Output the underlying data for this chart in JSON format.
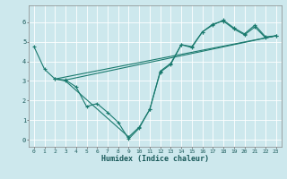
{
  "title": "",
  "xlabel": "Humidex (Indice chaleur)",
  "ylabel": "",
  "bg_color": "#cde8ed",
  "grid_color": "#ffffff",
  "line_color": "#1a7a6e",
  "xlim": [
    -0.5,
    23.5
  ],
  "ylim": [
    -0.35,
    6.85
  ],
  "xticks": [
    0,
    1,
    2,
    3,
    4,
    5,
    6,
    7,
    8,
    9,
    10,
    11,
    12,
    13,
    14,
    15,
    16,
    17,
    18,
    19,
    20,
    21,
    22,
    23
  ],
  "yticks": [
    0,
    1,
    2,
    3,
    4,
    5,
    6
  ],
  "line1_x": [
    0,
    1,
    2,
    3,
    4,
    5,
    6,
    7,
    8,
    9,
    10,
    11,
    12,
    13,
    14,
    15,
    16,
    17,
    18,
    19,
    20,
    21,
    22,
    23
  ],
  "line1_y": [
    4.75,
    3.6,
    3.1,
    3.05,
    2.7,
    1.7,
    1.85,
    1.4,
    0.9,
    0.05,
    0.6,
    1.55,
    3.45,
    3.85,
    4.85,
    4.7,
    5.5,
    5.85,
    6.1,
    5.7,
    5.4,
    5.85,
    5.25,
    5.3
  ],
  "line2_x": [
    2,
    3,
    9,
    10,
    11,
    12,
    13,
    14,
    15,
    16,
    17,
    18,
    19,
    20,
    21,
    22,
    23
  ],
  "line2_y": [
    3.1,
    3.0,
    0.15,
    0.65,
    1.55,
    3.5,
    3.9,
    4.85,
    4.75,
    5.5,
    5.9,
    6.05,
    5.65,
    5.35,
    5.75,
    5.2,
    5.3
  ],
  "line3_x": [
    2,
    23
  ],
  "line3_y": [
    3.1,
    5.3
  ],
  "line4_x": [
    3,
    23
  ],
  "line4_y": [
    3.05,
    5.3
  ],
  "figsize": [
    3.2,
    2.0
  ],
  "dpi": 100
}
